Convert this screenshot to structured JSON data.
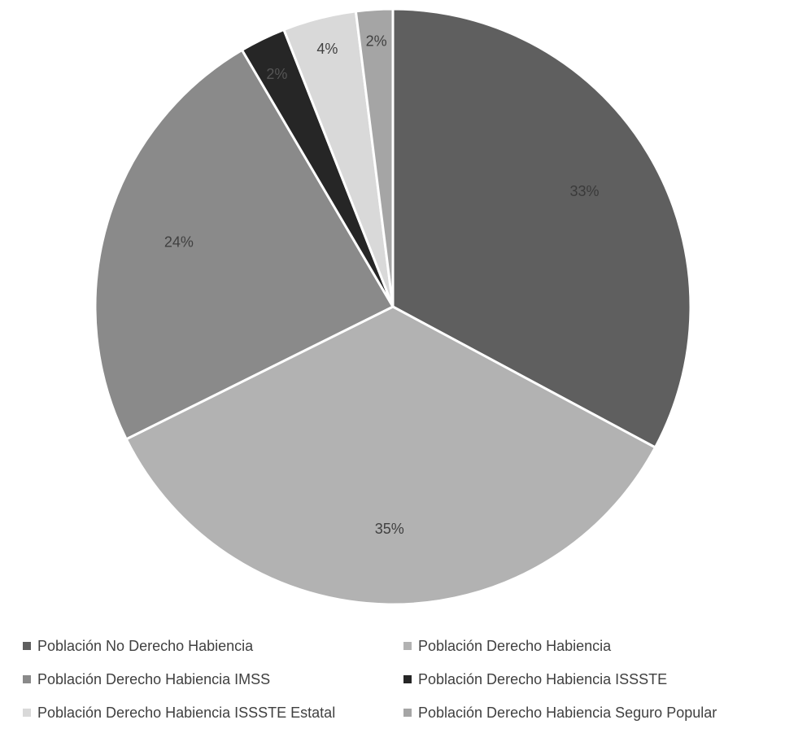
{
  "chart_data": {
    "type": "pie",
    "title": "",
    "slices": [
      {
        "name": "Población No Derecho Habiencia",
        "value": 33,
        "label": "33%",
        "color": "#5f5f5f",
        "label_color": "#3a3a3a"
      },
      {
        "name": "Población Derecho Habiencia",
        "value": 35,
        "label": "35%",
        "color": "#b2b2b2",
        "label_color": "#404040"
      },
      {
        "name": "Población Derecho Habiencia IMSS",
        "value": 24,
        "label": "24%",
        "color": "#8a8a8a",
        "label_color": "#404040"
      },
      {
        "name": "Población Derecho Habiencia ISSSTE",
        "value": 2.5,
        "label": "2%",
        "color": "#262626",
        "label_color": "#555555"
      },
      {
        "name": "Población Derecho Habiencia ISSSTE Estatal",
        "value": 4,
        "label": "4%",
        "color": "#d9d9d9",
        "label_color": "#404040"
      },
      {
        "name": "Población Derecho Habiencia Seguro Popular",
        "value": 2,
        "label": "2%",
        "color": "#a5a5a5",
        "label_color": "#404040"
      }
    ],
    "legend_position": "bottom"
  }
}
